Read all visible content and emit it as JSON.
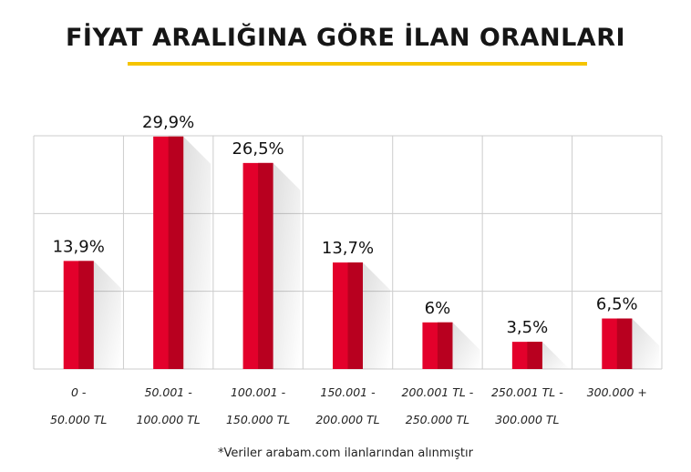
{
  "title": "FİYAT ARALIĞINA GÖRE İLAN ORANLARI",
  "footnote": "*Veriler arabam.com ilanlarından alınmıştır",
  "colors": {
    "bar": "#e3002b",
    "bar_dark": "#b8001f",
    "grid": "#cccccc",
    "underline": "#f5c400",
    "text": "#111111"
  },
  "chart_data": {
    "type": "bar",
    "title": "FİYAT ARALIĞINA GÖRE İLAN ORANLARI",
    "categories": [
      [
        "0 -",
        "50.000 TL"
      ],
      [
        "50.001 -",
        "100.000 TL"
      ],
      [
        "100.001 -",
        "150.000 TL"
      ],
      [
        "150.001 -",
        "200.000 TL"
      ],
      [
        "200.001 TL -",
        "250.000 TL"
      ],
      [
        "250.001 TL -",
        "300.000 TL"
      ],
      [
        "300.000 +",
        ""
      ]
    ],
    "values": [
      13.9,
      29.9,
      26.5,
      13.7,
      6,
      3.5,
      6.5
    ],
    "data_labels": [
      "13,9%",
      "29,9%",
      "26,5%",
      "13,7%",
      "6%",
      "3,5%",
      "6,5%"
    ],
    "ylim": [
      0,
      30
    ],
    "grid": true,
    "legend": "none"
  }
}
